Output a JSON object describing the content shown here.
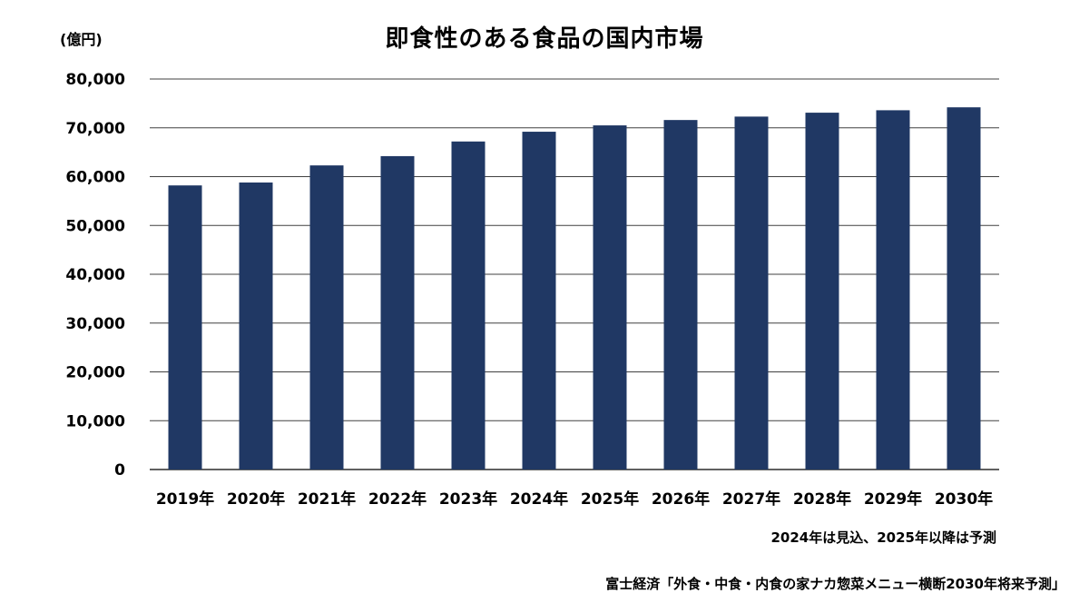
{
  "chart_data": {
    "type": "bar",
    "title": "即食性のある食品の国内市場",
    "unit_label": "(億円)",
    "categories": [
      "2019年",
      "2020年",
      "2021年",
      "2022年",
      "2023年",
      "2024年",
      "2025年",
      "2026年",
      "2027年",
      "2028年",
      "2029年",
      "2030年"
    ],
    "values": [
      58200,
      58800,
      62300,
      64200,
      67200,
      69200,
      70500,
      71600,
      72300,
      73100,
      73600,
      74200
    ],
    "ylim": [
      0,
      80000
    ],
    "yticks": [
      "0",
      "10,000",
      "20,000",
      "30,000",
      "40,000",
      "50,000",
      "60,000",
      "70,000",
      "80,000"
    ],
    "grid": true,
    "bar_color": "#203864"
  },
  "note": "2024年は見込、2025年以降は予測",
  "source": "富士経済「外食・中食・内食の家ナカ惣菜メニュー横断2030年将来予測」"
}
